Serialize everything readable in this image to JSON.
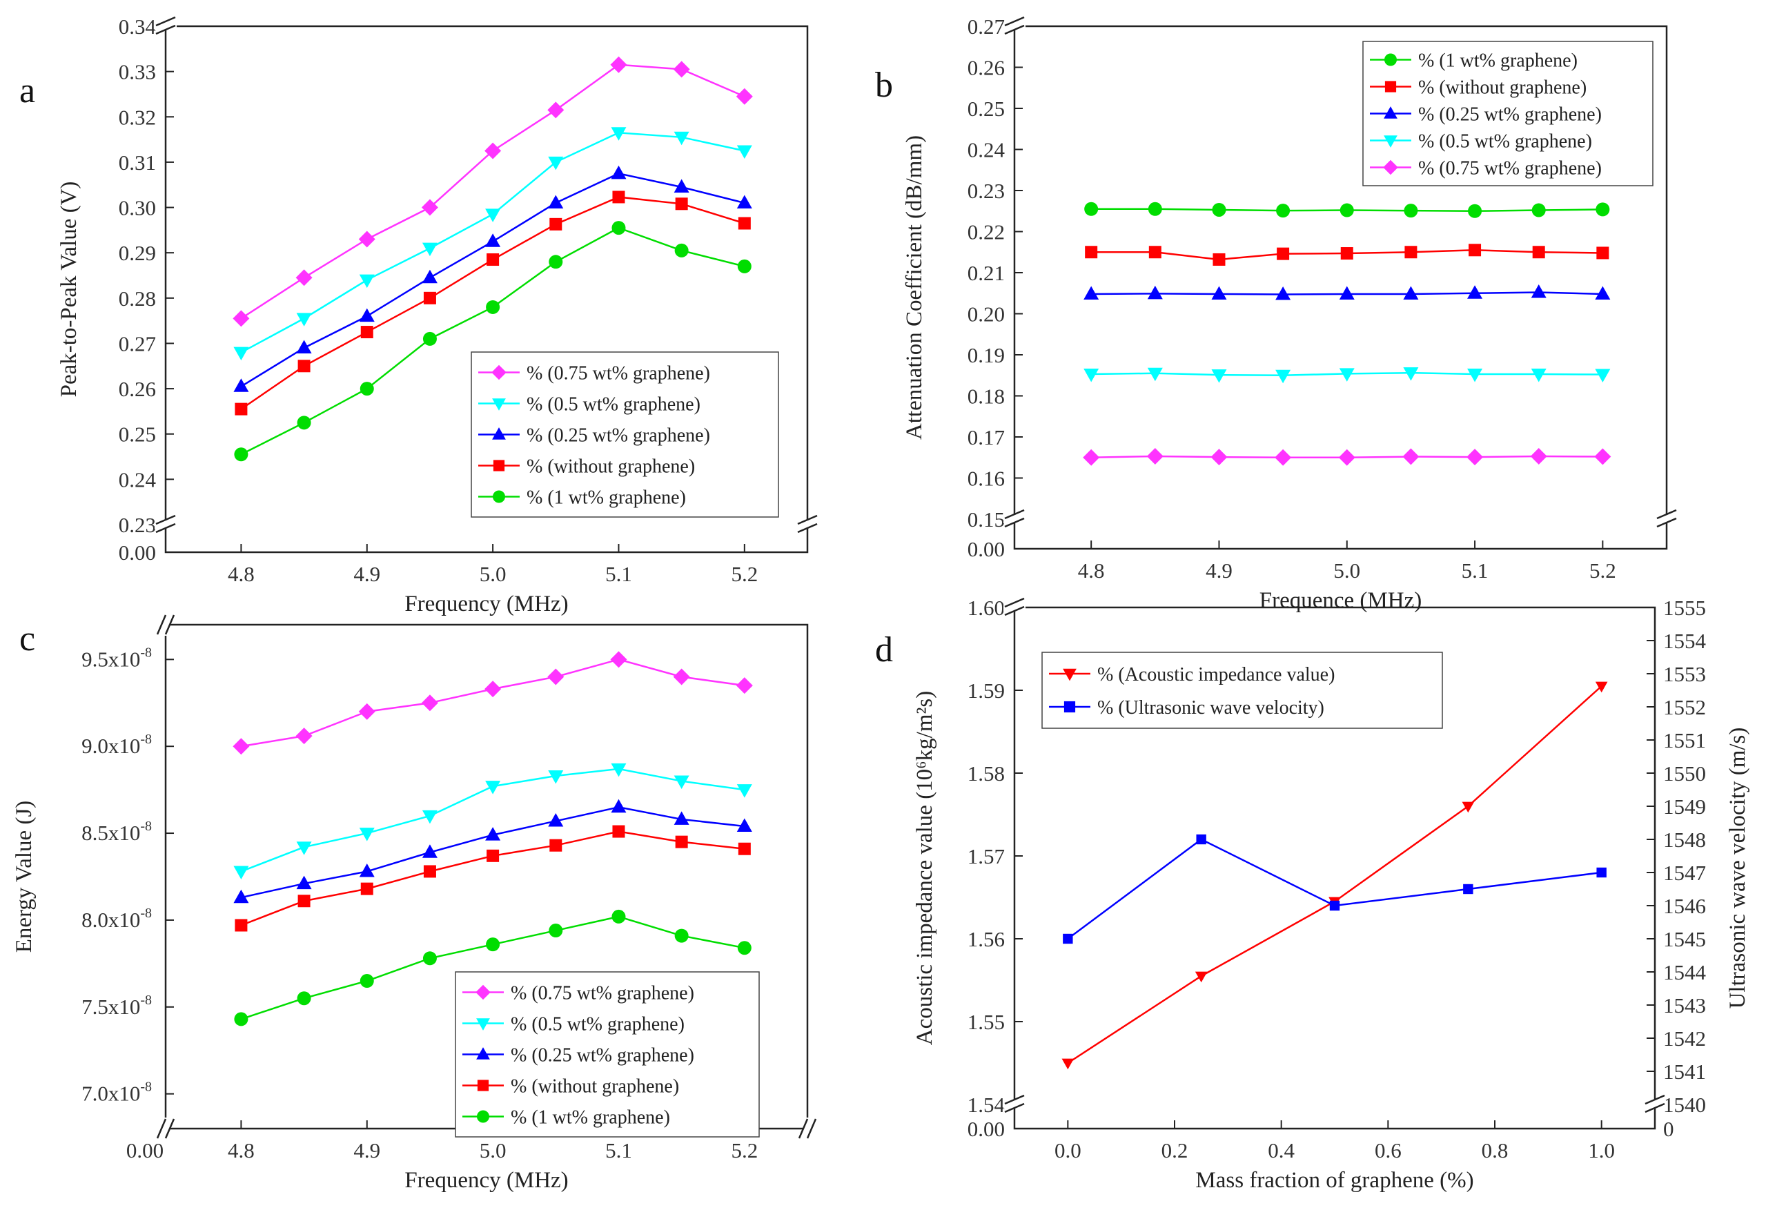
{
  "chart_data": [
    {
      "panel": "a",
      "type": "line",
      "xlabel": "Frequency (MHz)",
      "ylabel": "Peak-to-Peak Value (V)",
      "x": [
        4.8,
        4.85,
        4.9,
        4.95,
        5.0,
        5.05,
        5.1,
        5.15,
        5.2
      ],
      "xticks": [
        "4.8",
        "4.9",
        "5.0",
        "5.1",
        "5.2"
      ],
      "xlim": [
        4.74,
        5.25
      ],
      "ylim": [
        0.23,
        0.34
      ],
      "yticks": [
        "0.23",
        "0.24",
        "0.25",
        "0.26",
        "0.27",
        "0.28",
        "0.29",
        "0.30",
        "0.31",
        "0.32",
        "0.33",
        "0.34"
      ],
      "ybreak_label": "0.00",
      "legend_position": "bottom-right",
      "series": [
        {
          "name": "% (0.75 wt% graphene)",
          "color": "#ff33ff",
          "marker": "diamond",
          "values": [
            0.2755,
            0.2845,
            0.293,
            0.3,
            0.3125,
            0.3215,
            0.3315,
            0.3305,
            0.3245
          ]
        },
        {
          "name": "% (0.5 wt% graphene)",
          "color": "#00ffff",
          "marker": "triangle-down",
          "values": [
            0.268,
            0.2755,
            0.284,
            0.291,
            0.2985,
            0.31,
            0.3165,
            0.3155,
            0.3125
          ]
        },
        {
          "name": "% (0.25 wt% graphene)",
          "color": "#0000ff",
          "marker": "triangle-up",
          "values": [
            0.2605,
            0.269,
            0.276,
            0.2845,
            0.2925,
            0.301,
            0.3075,
            0.3045,
            0.301
          ]
        },
        {
          "name": "% (without graphene)",
          "color": "#ff0000",
          "marker": "square",
          "values": [
            0.2555,
            0.265,
            0.2725,
            0.28,
            0.2885,
            0.2963,
            0.3023,
            0.3008,
            0.2965
          ]
        },
        {
          "name": "% (1 wt% graphene)",
          "color": "#00dd00",
          "marker": "circle",
          "values": [
            0.2455,
            0.2525,
            0.26,
            0.271,
            0.278,
            0.288,
            0.2955,
            0.2905,
            0.287
          ]
        }
      ]
    },
    {
      "panel": "b",
      "type": "line",
      "xlabel": "Frequence (MHz)",
      "ylabel": "Attenuation Coefficient (dB/mm)",
      "x": [
        4.8,
        4.85,
        4.9,
        4.95,
        5.0,
        5.05,
        5.1,
        5.15,
        5.2
      ],
      "xticks": [
        "4.8",
        "4.9",
        "5.0",
        "5.1",
        "5.2"
      ],
      "xlim": [
        4.74,
        5.25
      ],
      "ylim": [
        0.15,
        0.27
      ],
      "yticks": [
        "0.15",
        "0.16",
        "0.17",
        "0.18",
        "0.19",
        "0.20",
        "0.21",
        "0.22",
        "0.23",
        "0.24",
        "0.25",
        "0.26",
        "0.27"
      ],
      "ybreak_label": "0.00",
      "legend_position": "top-right",
      "series": [
        {
          "name": "% (1 wt% graphene)",
          "color": "#00dd00",
          "marker": "circle",
          "values": [
            0.2255,
            0.2255,
            0.2253,
            0.2251,
            0.2252,
            0.2251,
            0.225,
            0.2252,
            0.2254
          ]
        },
        {
          "name": "% (without graphene)",
          "color": "#ff0000",
          "marker": "square",
          "values": [
            0.215,
            0.215,
            0.2132,
            0.2146,
            0.2147,
            0.215,
            0.2155,
            0.215,
            0.2148
          ]
        },
        {
          "name": "% (0.25 wt% graphene)",
          "color": "#0000ff",
          "marker": "triangle-up",
          "values": [
            0.2048,
            0.2049,
            0.2048,
            0.2047,
            0.2048,
            0.2048,
            0.205,
            0.2052,
            0.2048
          ]
        },
        {
          "name": "% (0.5 wt% graphene)",
          "color": "#00ffff",
          "marker": "triangle-down",
          "values": [
            0.1853,
            0.1855,
            0.1851,
            0.185,
            0.1854,
            0.1856,
            0.1853,
            0.1853,
            0.1852
          ]
        },
        {
          "name": "% (0.75 wt% graphene)",
          "color": "#ff33ff",
          "marker": "diamond",
          "values": [
            0.165,
            0.1653,
            0.1651,
            0.165,
            0.165,
            0.1652,
            0.1651,
            0.1653,
            0.1652
          ]
        }
      ]
    },
    {
      "panel": "c",
      "type": "line",
      "xlabel": "Frequency (MHz)",
      "ylabel": "Energy Value (J)",
      "x": [
        4.8,
        4.85,
        4.9,
        4.95,
        5.0,
        5.05,
        5.1,
        5.15,
        5.2
      ],
      "xticks": [
        "4.8",
        "4.9",
        "5.0",
        "5.1",
        "5.2"
      ],
      "xbreak_label": "0.00",
      "xlim": [
        4.74,
        5.25
      ],
      "ylim": [
        6.8,
        9.7
      ],
      "ytick_values": [
        7.0,
        7.5,
        8.0,
        8.5,
        9.0,
        9.5
      ],
      "yticks": [
        "7.0x10",
        "7.5x10",
        "8.0x10",
        "8.5x10",
        "9.0x10",
        "9.5x10"
      ],
      "ytick_exponent": "-8",
      "legend_position": "bottom-right",
      "series": [
        {
          "name": "% (0.75 wt% graphene)",
          "color": "#ff33ff",
          "marker": "diamond",
          "values": [
            9.0,
            9.06,
            9.2,
            9.25,
            9.33,
            9.4,
            9.5,
            9.4,
            9.35
          ]
        },
        {
          "name": "% (0.5 wt% graphene)",
          "color": "#00ffff",
          "marker": "triangle-down",
          "values": [
            8.28,
            8.42,
            8.5,
            8.6,
            8.77,
            8.83,
            8.87,
            8.8,
            8.75
          ]
        },
        {
          "name": "% (0.25 wt% graphene)",
          "color": "#0000ff",
          "marker": "triangle-up",
          "values": [
            8.13,
            8.21,
            8.28,
            8.39,
            8.49,
            8.57,
            8.65,
            8.58,
            8.54
          ]
        },
        {
          "name": "% (without graphene)",
          "color": "#ff0000",
          "marker": "square",
          "values": [
            7.97,
            8.11,
            8.18,
            8.28,
            8.37,
            8.43,
            8.51,
            8.45,
            8.41
          ]
        },
        {
          "name": "% (1 wt% graphene)",
          "color": "#00dd00",
          "marker": "circle",
          "values": [
            7.43,
            7.55,
            7.65,
            7.78,
            7.86,
            7.94,
            8.02,
            7.91,
            7.84
          ]
        }
      ]
    },
    {
      "panel": "d",
      "type": "line",
      "xlabel": "Mass fraction of graphene (%)",
      "ylabel_left": "Acoustic impedance value (10⁶kg/m²s)",
      "ylabel_right": "Ultrasonic wave velocity  (m/s)",
      "x": [
        0.0,
        0.25,
        0.5,
        0.75,
        1.0
      ],
      "xlim": [
        -0.1,
        1.1
      ],
      "xticks": [
        "0.0",
        "0.2",
        "0.4",
        "0.6",
        "0.8",
        "1.0"
      ],
      "ylim_left": [
        1.54,
        1.6
      ],
      "yticks_left": [
        "1.54",
        "1.55",
        "1.56",
        "1.57",
        "1.58",
        "1.59",
        "1.60"
      ],
      "ybreak_label_left": "0.00",
      "ylim_right": [
        1540,
        1555
      ],
      "yticks_right": [
        "1540",
        "1541",
        "1542",
        "1543",
        "1544",
        "1545",
        "1546",
        "1547",
        "1548",
        "1549",
        "1550",
        "1551",
        "1552",
        "1553",
        "1554",
        "1555"
      ],
      "ybreak_label_right": "0",
      "legend_position": "top-left",
      "series": [
        {
          "name": "% (Acoustic impedance value)",
          "axis": "left",
          "color": "#ff0000",
          "marker": "triangle-down",
          "values": [
            1.545,
            1.5555,
            1.5645,
            1.576,
            1.5905
          ]
        },
        {
          "name": "% (Ultrasonic wave velocity)",
          "axis": "right",
          "color": "#0000ff",
          "marker": "square",
          "values": [
            1545.0,
            1548.0,
            1546.0,
            1546.5,
            1547.0
          ]
        }
      ]
    }
  ]
}
